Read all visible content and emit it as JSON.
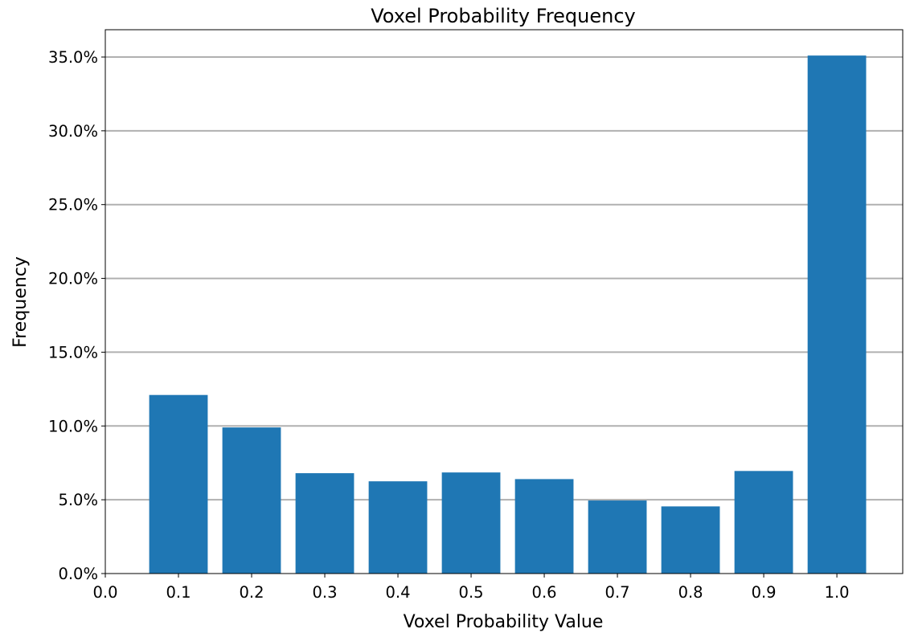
{
  "chart_data": {
    "type": "bar",
    "title": "Voxel Probability Frequency",
    "xlabel": "Voxel Probability Value",
    "ylabel": "Frequency",
    "x": [
      0.1,
      0.2,
      0.3,
      0.4,
      0.5,
      0.6,
      0.7,
      0.8,
      0.9,
      1.0
    ],
    "values": [
      12.1,
      9.9,
      6.8,
      6.25,
      6.85,
      6.4,
      4.95,
      4.55,
      6.95,
      35.1
    ],
    "value_unit": "%",
    "xlim": [
      0.0,
      1.09
    ],
    "ylim": [
      0,
      36.85
    ],
    "xticks": [
      0.0,
      0.1,
      0.2,
      0.3,
      0.4,
      0.5,
      0.6,
      0.7,
      0.8,
      0.9,
      1.0
    ],
    "xtick_labels": [
      "0.0",
      "0.1",
      "0.2",
      "0.3",
      "0.4",
      "0.5",
      "0.6",
      "0.7",
      "0.8",
      "0.9",
      "1.0"
    ],
    "yticks": [
      0,
      5,
      10,
      15,
      20,
      25,
      30,
      35
    ],
    "ytick_labels": [
      "0.0%",
      "5.0%",
      "10.0%",
      "15.0%",
      "20.0%",
      "25.0%",
      "30.0%",
      "35.0%"
    ],
    "bar_width": 0.08,
    "grid": "y",
    "legend": "none",
    "colors": {
      "bar": "#1f77b4",
      "grid": "#b0b0b0",
      "axis": "#000000"
    }
  }
}
